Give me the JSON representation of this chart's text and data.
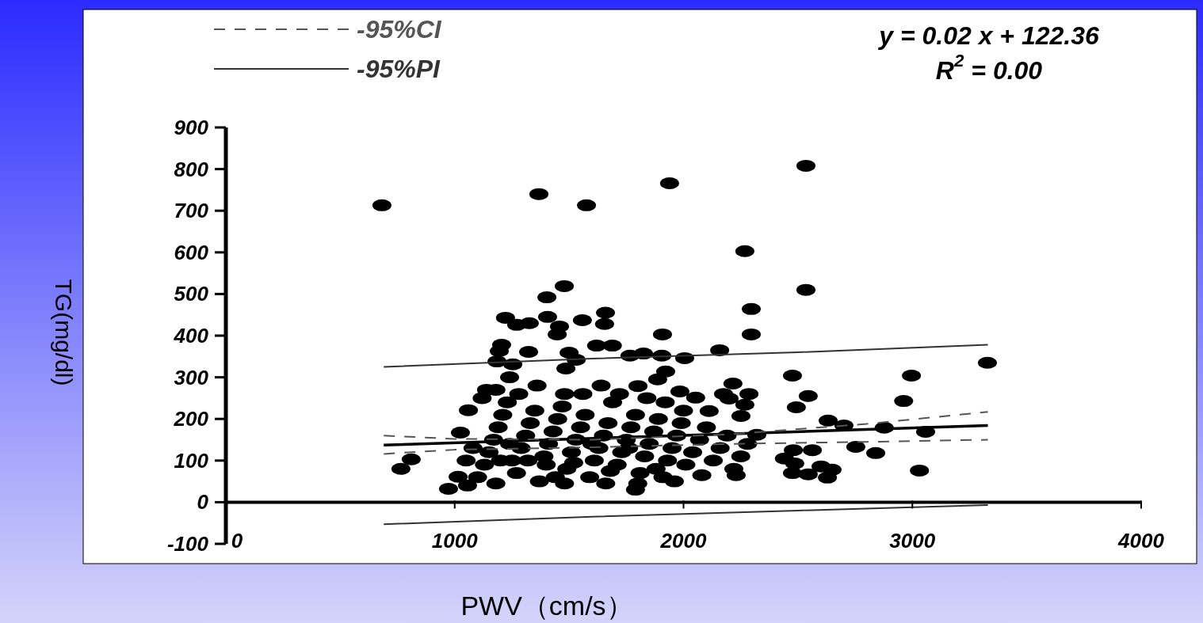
{
  "chart_data": {
    "type": "scatter",
    "xlabel": "PWV（cm/s）",
    "ylabel": "TG(mg/dl)",
    "xlim": [
      0,
      4000
    ],
    "ylim": [
      -100,
      900
    ],
    "xticks": [
      0,
      1000,
      2000,
      3000,
      4000
    ],
    "yticks": [
      -100,
      0,
      100,
      200,
      300,
      400,
      500,
      600,
      700,
      800,
      900
    ],
    "grid": false,
    "legend": "top left",
    "annotations": [
      "y = 0.02 x + 122.36",
      "R$^{2}$ = 0.00"
    ],
    "series": [
      {
        "marker": "circle",
        "color": "#000000",
        "x": [
          682,
          1368,
          1576,
          1939,
          2535,
          2268,
          2535,
          1479,
          1403,
          2296,
          2296,
          1908,
          2158,
          2476,
          2996,
          2962,
          3328,
          2545,
          2493,
          2632,
          2701,
          2877,
          2753,
          2840,
          3058,
          3031,
          2480,
          2563,
          2441,
          2486,
          2476,
          2545,
          2601,
          2649,
          2629,
          765,
          810,
          973,
          1015,
          1056,
          1025,
          1060,
          1139,
          1205,
          1222,
          1271,
          1326,
          1406,
          1323,
          1195,
          1185,
          1254,
          1458,
          1448,
          1558,
          1655,
          1659,
          1689,
          1620,
          1500,
          1486,
          1531,
          1766,
          1825,
          1905,
          1922,
          2005,
          1801,
          1887,
          1984,
          2053,
          2112,
          2199,
          2216,
          2175,
          2251,
          2286,
          2268,
          2320,
          1100,
          1130,
          1150,
          1170,
          1190,
          1210,
          1230,
          1250,
          1270,
          1290,
          1310,
          1330,
          1350,
          1370,
          1390,
          1410,
          1430,
          1450,
          1470,
          1490,
          1510,
          1530,
          1550,
          1570,
          1590,
          1610,
          1630,
          1650,
          1670,
          1690,
          1710,
          1730,
          1750,
          1770,
          1790,
          1810,
          1830,
          1850,
          1870,
          1890,
          1910,
          1930,
          1950,
          1970,
          1990,
          2010,
          2040,
          2070,
          2100,
          2130,
          2160,
          2190,
          2220,
          2250,
          2280,
          1200,
          1240,
          1280,
          1320,
          1360,
          1400,
          1440,
          1480,
          1520,
          1560,
          1600,
          1640,
          1680,
          1720,
          1760,
          1800,
          1840,
          1880,
          1920,
          1960,
          2000,
          1790,
          1180,
          1480,
          1660,
          2080,
          2230,
          1050,
          1080,
          1120,
          1240,
          1180
        ],
        "values": [
          713,
          740,
          713,
          766,
          808,
          603,
          510,
          519,
          492,
          464,
          403,
          403,
          365,
          304,
          304,
          243,
          335,
          255,
          228,
          196,
          184,
          179,
          133,
          118,
          169,
          76,
          125,
          125,
          105,
          93,
          70,
          67,
          86,
          78,
          59,
          80,
          103,
          32,
          61,
          40,
          167,
          221,
          270,
          378,
          443,
          426,
          430,
          445,
          361,
          363,
          338,
          331,
          422,
          403,
          437,
          428,
          455,
          376,
          376,
          359,
          321,
          342,
          352,
          357,
          352,
          314,
          346,
          279,
          295,
          266,
          251,
          219,
          249,
          285,
          260,
          207,
          260,
          234,
          162,
          60,
          90,
          120,
          150,
          180,
          210,
          240,
          100,
          70,
          130,
          160,
          190,
          220,
          50,
          110,
          140,
          170,
          200,
          230,
          80,
          120,
          150,
          180,
          210,
          60,
          100,
          130,
          160,
          190,
          240,
          90,
          120,
          150,
          180,
          210,
          70,
          110,
          140,
          170,
          200,
          60,
          100,
          130,
          160,
          190,
          90,
          120,
          150,
          180,
          100,
          130,
          160,
          80,
          110,
          140,
          100,
          140,
          260,
          100,
          280,
          90,
          60,
          260,
          95,
          260,
          140,
          280,
          75,
          260,
          130,
          45,
          250,
          80,
          240,
          50,
          220,
          30,
          45,
          45,
          45,
          65,
          65,
          100,
          130,
          250,
          300,
          270
        ]
      },
      {
        "type": "line",
        "line_style": "solid",
        "color": "#000000",
        "x": [
          690,
          3330
        ],
        "values": [
          137,
          184
        ]
      },
      {
        "type": "line",
        "name": "-95%CI",
        "line_style": "dashed",
        "color": "#555555",
        "x": [
          690,
          1000,
          1600,
          2200,
          2800,
          3330
        ],
        "values": [
          160,
          152,
          150,
          163,
          188,
          217
        ]
      },
      {
        "type": "line",
        "line_style": "dashed",
        "color": "#555555",
        "x": [
          690,
          1000,
          1600,
          2200,
          2800,
          3330
        ],
        "values": [
          116,
          126,
          132,
          140,
          145,
          150
        ]
      },
      {
        "type": "line",
        "name": "-95%PI",
        "line_style": "solid",
        "color": "#333333",
        "x": [
          690,
          1600,
          2500,
          3330
        ],
        "values": [
          325,
          345,
          360,
          378
        ]
      },
      {
        "type": "line",
        "line_style": "solid",
        "color": "#333333",
        "x": [
          690,
          1600,
          2500,
          3330
        ],
        "values": [
          -53,
          -35,
          -20,
          -7
        ]
      }
    ]
  }
}
